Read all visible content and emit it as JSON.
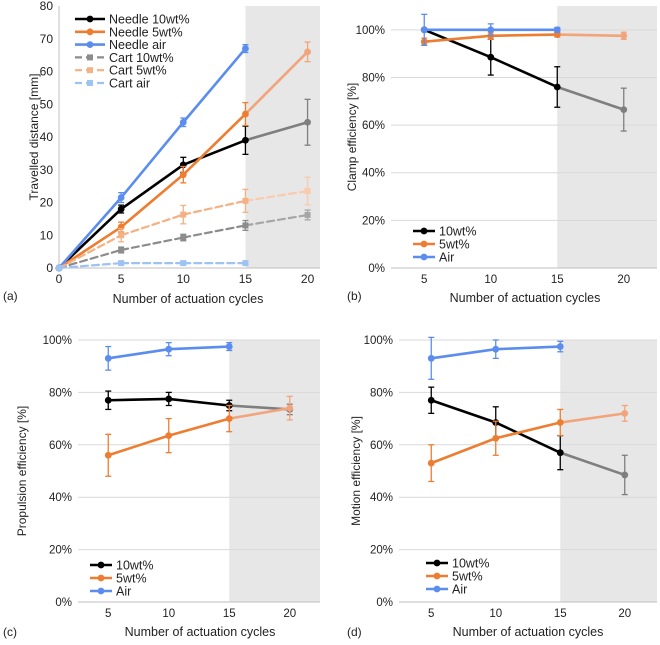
{
  "figure": {
    "panel_labels": [
      "(a)",
      "(b)",
      "(c)",
      "(d)"
    ],
    "xlabel": "Number of actuation cycles",
    "shaded_region_x": [
      15,
      20
    ]
  },
  "chart_data": [
    {
      "panel": "(a)",
      "type": "line",
      "title": "",
      "xlabel": "Number of actuation cycles",
      "ylabel": "Travelled distance [mm]",
      "x_ticks": [
        0,
        5,
        10,
        15,
        20
      ],
      "y_ticks": [
        0,
        10,
        20,
        30,
        40,
        50,
        60,
        70,
        80
      ],
      "y_tick_labels": [
        "0",
        "10",
        "20",
        "30",
        "40",
        "50",
        "60",
        "70",
        "80"
      ],
      "xlim": [
        0,
        21
      ],
      "ylim": [
        0,
        80
      ],
      "legend_position": "top-left",
      "series": [
        {
          "name": "Needle 10wt%",
          "color": "#000000",
          "fade_color": "#7f7f7f",
          "dashed": false,
          "points": [
            {
              "x": 0,
              "y": 0,
              "err": 0
            },
            {
              "x": 5,
              "y": 18,
              "err": 1.2
            },
            {
              "x": 10,
              "y": 31.5,
              "err": 2.3
            },
            {
              "x": 15,
              "y": 39,
              "err": 4.3
            },
            {
              "x": 20,
              "y": 44.5,
              "err": 7
            }
          ]
        },
        {
          "name": "Needle 5wt%",
          "color": "#ed7d31",
          "fade_color": "#f2a47a",
          "dashed": false,
          "points": [
            {
              "x": 0,
              "y": 0,
              "err": 0
            },
            {
              "x": 5,
              "y": 12.5,
              "err": 1.5
            },
            {
              "x": 10,
              "y": 28.5,
              "err": 2.5
            },
            {
              "x": 15,
              "y": 47,
              "err": 3.5
            },
            {
              "x": 20,
              "y": 66,
              "err": 3
            }
          ]
        },
        {
          "name": "Needle air",
          "color": "#5b8def",
          "fade_color": "#5b8def",
          "dashed": false,
          "points": [
            {
              "x": 0,
              "y": 0,
              "err": 0
            },
            {
              "x": 5,
              "y": 21.5,
              "err": 1.5
            },
            {
              "x": 10,
              "y": 44.5,
              "err": 1.3
            },
            {
              "x": 15,
              "y": 67,
              "err": 1.2
            }
          ]
        },
        {
          "name": "Cart 10wt%",
          "color": "#8c8c8c",
          "fade_color": "#a6a6a6",
          "dashed": true,
          "points": [
            {
              "x": 0,
              "y": 0,
              "err": 0
            },
            {
              "x": 5,
              "y": 5.5,
              "err": 0.9
            },
            {
              "x": 10,
              "y": 9.3,
              "err": 1
            },
            {
              "x": 15,
              "y": 13,
              "err": 1.5
            },
            {
              "x": 20,
              "y": 16.2,
              "err": 1.5
            }
          ]
        },
        {
          "name": "Cart 5wt%",
          "color": "#f4b183",
          "fade_color": "#f8cbad",
          "dashed": true,
          "points": [
            {
              "x": 0,
              "y": 0,
              "err": 0
            },
            {
              "x": 5,
              "y": 10,
              "err": 2
            },
            {
              "x": 10,
              "y": 16.3,
              "err": 2.8
            },
            {
              "x": 15,
              "y": 20.5,
              "err": 3.5
            },
            {
              "x": 20,
              "y": 23.5,
              "err": 4.2
            }
          ]
        },
        {
          "name": "Cart air",
          "color": "#9dc3f2",
          "fade_color": "#9dc3f2",
          "dashed": true,
          "points": [
            {
              "x": 0,
              "y": 0,
              "err": 0
            },
            {
              "x": 5,
              "y": 1.5,
              "err": 0.5
            },
            {
              "x": 10,
              "y": 1.5,
              "err": 0.5
            },
            {
              "x": 15,
              "y": 1.5,
              "err": 0.5
            }
          ]
        }
      ]
    },
    {
      "panel": "(b)",
      "type": "line",
      "title": "",
      "xlabel": "Number of actuation cycles",
      "ylabel": "Clamp efficiency [%]",
      "x_ticks": [
        5,
        10,
        15,
        20
      ],
      "y_ticks": [
        0,
        20,
        40,
        60,
        80,
        100
      ],
      "y_tick_labels": [
        "0%",
        "20%",
        "40%",
        "60%",
        "80%",
        "100%"
      ],
      "xlim": [
        2.5,
        22.5
      ],
      "ylim": [
        0,
        110
      ],
      "legend_position": "bottom-left",
      "series": [
        {
          "name": "10wt%",
          "color": "#000000",
          "fade_color": "#7f7f7f",
          "points": [
            {
              "x": 5,
              "y": 100,
              "err": 0
            },
            {
              "x": 10,
              "y": 88.5,
              "err": 7.5
            },
            {
              "x": 15,
              "y": 76,
              "err": 8.5
            },
            {
              "x": 20,
              "y": 66.5,
              "err": 9
            }
          ]
        },
        {
          "name": "5wt%",
          "color": "#ed7d31",
          "fade_color": "#f2a47a",
          "points": [
            {
              "x": 5,
              "y": 95,
              "err": 1.5
            },
            {
              "x": 10,
              "y": 97.5,
              "err": 1.5
            },
            {
              "x": 15,
              "y": 98,
              "err": 1
            },
            {
              "x": 20,
              "y": 97.5,
              "err": 1.5
            }
          ]
        },
        {
          "name": "Air",
          "color": "#5b8def",
          "fade_color": "#5b8def",
          "points": [
            {
              "x": 5,
              "y": 100,
              "err": 6.5
            },
            {
              "x": 10,
              "y": 100,
              "err": 2.5
            },
            {
              "x": 15,
              "y": 100,
              "err": 1
            }
          ]
        }
      ]
    },
    {
      "panel": "(c)",
      "type": "line",
      "title": "",
      "xlabel": "Number of actuation cycles",
      "ylabel": "Propulsion efficiency [%]",
      "x_ticks": [
        5,
        10,
        15,
        20
      ],
      "y_ticks": [
        0,
        20,
        40,
        60,
        80,
        100
      ],
      "y_tick_labels": [
        "0%",
        "20%",
        "40%",
        "60%",
        "80%",
        "100%"
      ],
      "xlim": [
        2.5,
        22.5
      ],
      "ylim": [
        0,
        100
      ],
      "legend_position": "bottom-left",
      "series": [
        {
          "name": "10wt%",
          "color": "#000000",
          "fade_color": "#7f7f7f",
          "points": [
            {
              "x": 5,
              "y": 77,
              "err": 3.5
            },
            {
              "x": 10,
              "y": 77.5,
              "err": 2.5
            },
            {
              "x": 15,
              "y": 75,
              "err": 2
            },
            {
              "x": 20,
              "y": 73.5,
              "err": 2
            }
          ]
        },
        {
          "name": "5wt%",
          "color": "#ed7d31",
          "fade_color": "#f2a47a",
          "points": [
            {
              "x": 5,
              "y": 56,
              "err": 8
            },
            {
              "x": 10,
              "y": 63.5,
              "err": 6.5
            },
            {
              "x": 15,
              "y": 70,
              "err": 5
            },
            {
              "x": 20,
              "y": 74,
              "err": 4.5
            }
          ]
        },
        {
          "name": "Air",
          "color": "#5b8def",
          "fade_color": "#5b8def",
          "points": [
            {
              "x": 5,
              "y": 93,
              "err": 4.5
            },
            {
              "x": 10,
              "y": 96.5,
              "err": 2.5
            },
            {
              "x": 15,
              "y": 97.5,
              "err": 1.5
            }
          ]
        }
      ]
    },
    {
      "panel": "(d)",
      "type": "line",
      "title": "",
      "xlabel": "Number of actuation cycles",
      "ylabel": "Motion efficiency [%]",
      "x_ticks": [
        5,
        10,
        15,
        20
      ],
      "y_ticks": [
        0,
        20,
        40,
        60,
        80,
        100
      ],
      "y_tick_labels": [
        "0%",
        "20%",
        "40%",
        "60%",
        "80%",
        "100%"
      ],
      "xlim": [
        2.5,
        22.5
      ],
      "ylim": [
        0,
        100
      ],
      "legend_position": "bottom-left",
      "series": [
        {
          "name": "10wt%",
          "color": "#000000",
          "fade_color": "#7f7f7f",
          "points": [
            {
              "x": 5,
              "y": 77,
              "err": 5
            },
            {
              "x": 10,
              "y": 68.5,
              "err": 6
            },
            {
              "x": 15,
              "y": 57,
              "err": 6.5
            },
            {
              "x": 20,
              "y": 48.5,
              "err": 7.5
            }
          ]
        },
        {
          "name": "5wt%",
          "color": "#ed7d31",
          "fade_color": "#f2a47a",
          "points": [
            {
              "x": 5,
              "y": 53,
              "err": 7
            },
            {
              "x": 10,
              "y": 62.5,
              "err": 6.5
            },
            {
              "x": 15,
              "y": 68.5,
              "err": 5
            },
            {
              "x": 20,
              "y": 72,
              "err": 3
            }
          ]
        },
        {
          "name": "Air",
          "color": "#5b8def",
          "fade_color": "#5b8def",
          "points": [
            {
              "x": 5,
              "y": 93,
              "err": 8
            },
            {
              "x": 10,
              "y": 96.5,
              "err": 3.5
            },
            {
              "x": 15,
              "y": 97.5,
              "err": 2
            }
          ]
        }
      ]
    }
  ]
}
